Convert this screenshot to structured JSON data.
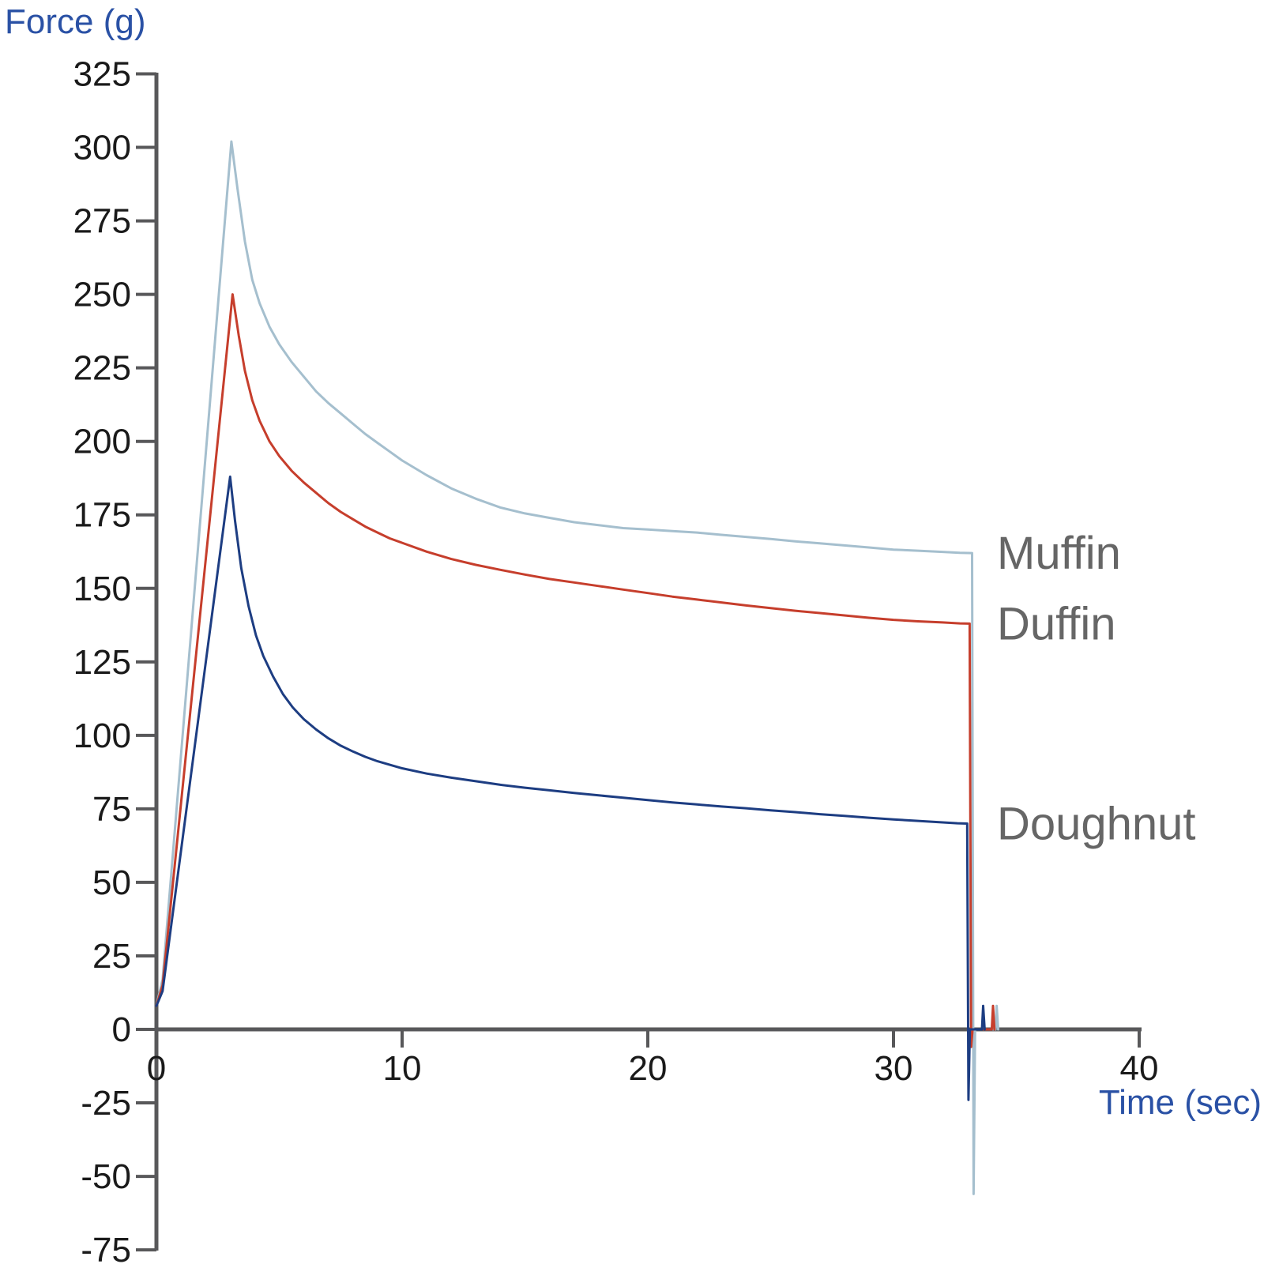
{
  "chart_data": {
    "type": "line",
    "title": "",
    "xlabel": "Time (sec)",
    "ylabel": "Force (g)",
    "xlim": [
      0,
      40
    ],
    "ylim": [
      -75,
      325
    ],
    "x_ticks": [
      0,
      10,
      20,
      30,
      40
    ],
    "y_ticks": [
      325,
      300,
      275,
      250,
      225,
      200,
      175,
      150,
      125,
      100,
      75,
      50,
      25,
      0,
      -25,
      -50,
      -75
    ],
    "grid": false,
    "legend_position": "right-of-curve-ends",
    "axis_color": "#58585a",
    "tick_label_color": "#1a1a1a",
    "axis_title_color": "#2a51a5",
    "series_label_color": "#666666",
    "series": [
      {
        "name": "Muffin",
        "color": "#a5bfce",
        "peak_time": 3.05,
        "peak_value": 302,
        "end_value": 162,
        "spike_min": -56,
        "points": [
          [
            0,
            8
          ],
          [
            0.25,
            17
          ],
          [
            3.05,
            302
          ],
          [
            3.3,
            286
          ],
          [
            3.6,
            268
          ],
          [
            3.9,
            255
          ],
          [
            4.2,
            247
          ],
          [
            4.6,
            239
          ],
          [
            5,
            233
          ],
          [
            5.5,
            227
          ],
          [
            6,
            222
          ],
          [
            6.5,
            217
          ],
          [
            7,
            213
          ],
          [
            7.5,
            209.5
          ],
          [
            8,
            206
          ],
          [
            8.5,
            202.5
          ],
          [
            9,
            199.5
          ],
          [
            9.5,
            196.5
          ],
          [
            10,
            193.5
          ],
          [
            11,
            188.5
          ],
          [
            12,
            184
          ],
          [
            13,
            180.5
          ],
          [
            14,
            177.5
          ],
          [
            15,
            175.5
          ],
          [
            16,
            174
          ],
          [
            17,
            172.5
          ],
          [
            18,
            171.5
          ],
          [
            19,
            170.5
          ],
          [
            20,
            170
          ],
          [
            21,
            169.5
          ],
          [
            22,
            169
          ],
          [
            23,
            168.2
          ],
          [
            24,
            167.5
          ],
          [
            25,
            166.8
          ],
          [
            26,
            166
          ],
          [
            27,
            165.3
          ],
          [
            28,
            164.6
          ],
          [
            29,
            163.9
          ],
          [
            30,
            163.2
          ],
          [
            31,
            162.8
          ],
          [
            32,
            162.4
          ],
          [
            32.7,
            162.1
          ],
          [
            33.2,
            162
          ],
          [
            33.26,
            -56
          ],
          [
            33.32,
            0
          ],
          [
            34.15,
            0
          ],
          [
            34.2,
            8
          ],
          [
            34.26,
            0
          ]
        ]
      },
      {
        "name": "Duffin",
        "color": "#c63e2c",
        "peak_time": 3.1,
        "peak_value": 250,
        "end_value": 138,
        "spike_min": -6,
        "points": [
          [
            0,
            8
          ],
          [
            0.25,
            15
          ],
          [
            3.1,
            250
          ],
          [
            3.35,
            236
          ],
          [
            3.6,
            224
          ],
          [
            3.9,
            214
          ],
          [
            4.2,
            207
          ],
          [
            4.6,
            200
          ],
          [
            5,
            195
          ],
          [
            5.5,
            190
          ],
          [
            6,
            186
          ],
          [
            6.5,
            182.5
          ],
          [
            7,
            179
          ],
          [
            7.5,
            176
          ],
          [
            8,
            173.5
          ],
          [
            8.5,
            171
          ],
          [
            9,
            169
          ],
          [
            9.5,
            167
          ],
          [
            10,
            165.5
          ],
          [
            11,
            162.5
          ],
          [
            12,
            160
          ],
          [
            13,
            158
          ],
          [
            14,
            156.3
          ],
          [
            15,
            154.7
          ],
          [
            16,
            153.2
          ],
          [
            17,
            152
          ],
          [
            18,
            150.8
          ],
          [
            19,
            149.6
          ],
          [
            20,
            148.4
          ],
          [
            21,
            147.2
          ],
          [
            22,
            146.2
          ],
          [
            23,
            145.2
          ],
          [
            24,
            144.2
          ],
          [
            25,
            143.3
          ],
          [
            26,
            142.4
          ],
          [
            27,
            141.6
          ],
          [
            28,
            140.8
          ],
          [
            29,
            140
          ],
          [
            30,
            139.3
          ],
          [
            31,
            138.8
          ],
          [
            32,
            138.4
          ],
          [
            32.7,
            138.1
          ],
          [
            33.1,
            138
          ],
          [
            33.16,
            -6
          ],
          [
            33.22,
            0
          ],
          [
            34,
            0
          ],
          [
            34.05,
            8
          ],
          [
            34.11,
            0
          ]
        ]
      },
      {
        "name": "Doughnut",
        "color": "#1d3d82",
        "peak_time": 3.0,
        "peak_value": 188,
        "end_value": 70,
        "spike_min": -24,
        "points": [
          [
            0,
            8
          ],
          [
            0.25,
            13
          ],
          [
            3,
            188
          ],
          [
            3.2,
            173
          ],
          [
            3.45,
            157
          ],
          [
            3.75,
            144
          ],
          [
            4.05,
            134
          ],
          [
            4.35,
            127
          ],
          [
            4.75,
            120
          ],
          [
            5.15,
            114
          ],
          [
            5.55,
            109.5
          ],
          [
            6,
            105.5
          ],
          [
            6.5,
            102
          ],
          [
            7,
            99
          ],
          [
            7.5,
            96.5
          ],
          [
            8,
            94.5
          ],
          [
            8.5,
            92.7
          ],
          [
            9,
            91.2
          ],
          [
            9.5,
            90
          ],
          [
            10,
            88.8
          ],
          [
            11,
            87
          ],
          [
            12,
            85.6
          ],
          [
            13,
            84.4
          ],
          [
            14,
            83.2
          ],
          [
            15,
            82.2
          ],
          [
            16,
            81.3
          ],
          [
            17,
            80.4
          ],
          [
            18,
            79.6
          ],
          [
            19,
            78.8
          ],
          [
            20,
            78
          ],
          [
            21,
            77.2
          ],
          [
            22,
            76.5
          ],
          [
            23,
            75.8
          ],
          [
            24,
            75.2
          ],
          [
            25,
            74.5
          ],
          [
            26,
            73.9
          ],
          [
            27,
            73.2
          ],
          [
            28,
            72.6
          ],
          [
            29,
            72
          ],
          [
            30,
            71.4
          ],
          [
            31,
            70.9
          ],
          [
            32,
            70.4
          ],
          [
            32.6,
            70.1
          ],
          [
            33,
            70
          ],
          [
            33.05,
            -24
          ],
          [
            33.11,
            0
          ],
          [
            33.6,
            0
          ],
          [
            33.65,
            8
          ],
          [
            33.71,
            0
          ]
        ]
      }
    ]
  }
}
